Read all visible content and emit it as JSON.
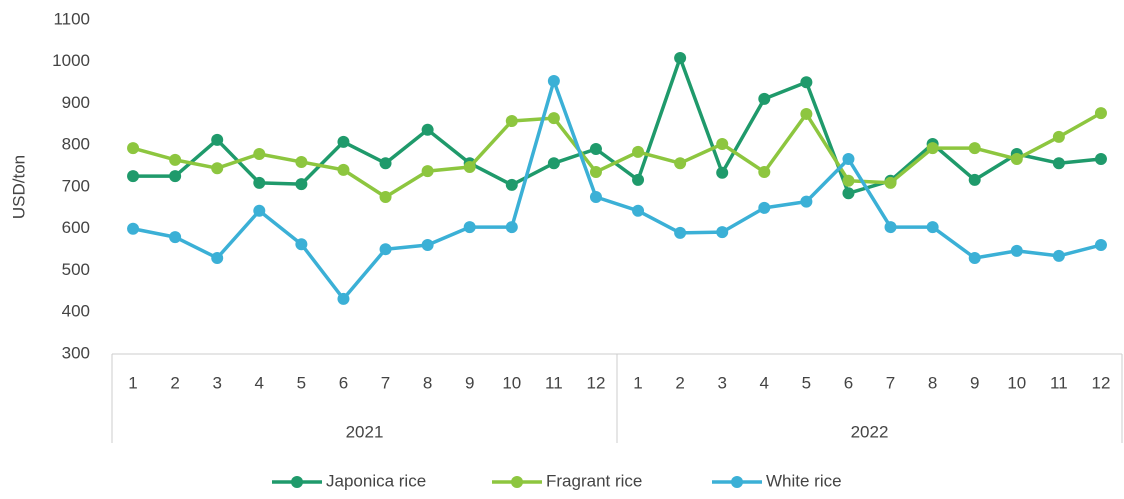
{
  "chart_data": {
    "type": "line",
    "y_label": "USD/ton",
    "categories": [
      "1",
      "2",
      "3",
      "4",
      "5",
      "6",
      "7",
      "8",
      "9",
      "10",
      "11",
      "12",
      "1",
      "2",
      "3",
      "4",
      "5",
      "6",
      "7",
      "8",
      "9",
      "10",
      "11",
      "12"
    ],
    "groups": [
      {
        "label": "2021",
        "span": 12
      },
      {
        "label": "2022",
        "span": 12
      }
    ],
    "series": [
      {
        "name": "Japonica rice",
        "color": "#1f9a6b",
        "values": [
          726,
          726,
          813,
          710,
          707,
          808,
          757,
          837,
          757,
          705,
          757,
          791,
          717,
          1009,
          734,
          911,
          951,
          685,
          715,
          803,
          717,
          779,
          757,
          767
        ]
      },
      {
        "name": "Fragrant rice",
        "color": "#8dc63f",
        "values": [
          793,
          765,
          745,
          779,
          760,
          741,
          676,
          738,
          748,
          858,
          865,
          736,
          784,
          757,
          803,
          736,
          875,
          715,
          710,
          793,
          793,
          767,
          820,
          877
        ]
      },
      {
        "name": "White rice",
        "color": "#3bb0d6",
        "values": [
          600,
          580,
          530,
          643,
          563,
          432,
          551,
          561,
          604,
          604,
          954,
          676,
          643,
          590,
          592,
          650,
          665,
          767,
          604,
          604,
          530,
          547,
          535,
          561
        ]
      }
    ],
    "ylim": [
      300,
      1100
    ],
    "yticks": [
      300,
      400,
      500,
      600,
      700,
      800,
      900,
      1000,
      1100
    ],
    "grid": false,
    "legend": "bottom"
  }
}
